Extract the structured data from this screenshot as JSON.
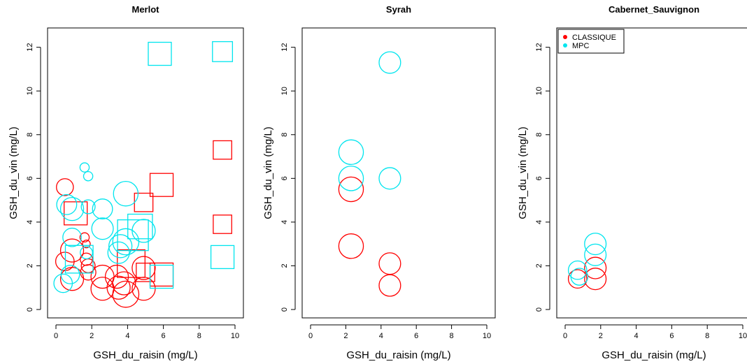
{
  "colors": {
    "CLASSIQUE": "#ff0000",
    "MPC": "#00e5ee",
    "axis": "#000000"
  },
  "legend": {
    "placement": "top-left",
    "panel": 2,
    "entries": [
      "CLASSIQUE",
      "MPC"
    ]
  },
  "chart_data": [
    {
      "type": "scatter",
      "title": "Merlot",
      "xlabel": "GSH_du_raisin (mg/L)",
      "ylabel": "GSH_du_vin (mg/L)",
      "xlim": [
        0,
        10
      ],
      "ylim": [
        0,
        12.5
      ],
      "xticks": [
        0,
        2,
        4,
        6,
        8,
        10
      ],
      "yticks": [
        0,
        2,
        4,
        6,
        8,
        10,
        12
      ],
      "series": [
        {
          "name": "CLASSIQUE",
          "color": "#ff0000",
          "points": [
            {
              "x": 0.5,
              "y": 5.6,
              "shape": "circle",
              "size": 0.55
            },
            {
              "x": 0.5,
              "y": 2.2,
              "shape": "circle",
              "size": 0.6
            },
            {
              "x": 0.9,
              "y": 2.7,
              "shape": "circle",
              "size": 0.75
            },
            {
              "x": 0.9,
              "y": 1.4,
              "shape": "circle",
              "size": 0.75
            },
            {
              "x": 1.1,
              "y": 4.4,
              "shape": "square",
              "size": 0.75
            },
            {
              "x": 1.6,
              "y": 3.3,
              "shape": "circle",
              "size": 0.3
            },
            {
              "x": 1.7,
              "y": 3.0,
              "shape": "circle",
              "size": 0.25
            },
            {
              "x": 1.7,
              "y": 2.3,
              "shape": "circle",
              "size": 0.4
            },
            {
              "x": 1.8,
              "y": 2.0,
              "shape": "circle",
              "size": 0.45
            },
            {
              "x": 1.8,
              "y": 1.7,
              "shape": "circle",
              "size": 0.5
            },
            {
              "x": 2.6,
              "y": 1.5,
              "shape": "circle",
              "size": 0.75
            },
            {
              "x": 2.6,
              "y": 0.95,
              "shape": "circle",
              "size": 0.75
            },
            {
              "x": 3.4,
              "y": 1.5,
              "shape": "circle",
              "size": 0.75
            },
            {
              "x": 3.5,
              "y": 1.0,
              "shape": "circle",
              "size": 0.75
            },
            {
              "x": 3.8,
              "y": 1.2,
              "shape": "circle",
              "size": 0.75
            },
            {
              "x": 3.9,
              "y": 0.7,
              "shape": "circle",
              "size": 0.85
            },
            {
              "x": 4.2,
              "y": 2.1,
              "shape": "square",
              "size": 0.9
            },
            {
              "x": 4.9,
              "y": 4.9,
              "shape": "square",
              "size": 0.6
            },
            {
              "x": 4.9,
              "y": 1.9,
              "shape": "circle",
              "size": 0.75
            },
            {
              "x": 4.9,
              "y": 0.95,
              "shape": "circle",
              "size": 0.75
            },
            {
              "x": 5.0,
              "y": 1.7,
              "shape": "square",
              "size": 0.6
            },
            {
              "x": 5.9,
              "y": 5.7,
              "shape": "square",
              "size": 0.75
            },
            {
              "x": 5.9,
              "y": 1.6,
              "shape": "square",
              "size": 0.75
            },
            {
              "x": 9.3,
              "y": 7.3,
              "shape": "square",
              "size": 0.6
            },
            {
              "x": 9.3,
              "y": 3.9,
              "shape": "square",
              "size": 0.6
            }
          ]
        },
        {
          "name": "MPC",
          "color": "#00e5ee",
          "points": [
            {
              "x": 0.4,
              "y": 1.2,
              "shape": "circle",
              "size": 0.6
            },
            {
              "x": 0.6,
              "y": 4.8,
              "shape": "circle",
              "size": 0.65
            },
            {
              "x": 0.8,
              "y": 1.6,
              "shape": "circle",
              "size": 0.6
            },
            {
              "x": 0.9,
              "y": 4.6,
              "shape": "circle",
              "size": 0.75
            },
            {
              "x": 0.9,
              "y": 3.3,
              "shape": "circle",
              "size": 0.6
            },
            {
              "x": 1.3,
              "y": 2.3,
              "shape": "square",
              "size": 0.9
            },
            {
              "x": 1.6,
              "y": 6.5,
              "shape": "circle",
              "size": 0.3
            },
            {
              "x": 1.8,
              "y": 6.1,
              "shape": "circle",
              "size": 0.3
            },
            {
              "x": 1.8,
              "y": 4.7,
              "shape": "circle",
              "size": 0.45
            },
            {
              "x": 1.7,
              "y": 2.6,
              "shape": "circle",
              "size": 0.4
            },
            {
              "x": 2.6,
              "y": 4.6,
              "shape": "circle",
              "size": 0.65
            },
            {
              "x": 2.6,
              "y": 3.7,
              "shape": "circle",
              "size": 0.7
            },
            {
              "x": 3.5,
              "y": 2.6,
              "shape": "circle",
              "size": 0.7
            },
            {
              "x": 3.6,
              "y": 2.9,
              "shape": "circle",
              "size": 0.75
            },
            {
              "x": 3.9,
              "y": 5.3,
              "shape": "circle",
              "size": 0.8
            },
            {
              "x": 3.9,
              "y": 3.1,
              "shape": "circle",
              "size": 0.85
            },
            {
              "x": 4.3,
              "y": 3.4,
              "shape": "square",
              "size": 1.0
            },
            {
              "x": 4.7,
              "y": 3.8,
              "shape": "square",
              "size": 0.8
            },
            {
              "x": 4.9,
              "y": 3.6,
              "shape": "circle",
              "size": 0.75
            },
            {
              "x": 5.8,
              "y": 11.7,
              "shape": "square",
              "size": 0.75
            },
            {
              "x": 5.9,
              "y": 1.5,
              "shape": "square",
              "size": 0.75
            },
            {
              "x": 9.3,
              "y": 11.8,
              "shape": "square",
              "size": 0.65
            },
            {
              "x": 9.3,
              "y": 2.4,
              "shape": "square",
              "size": 0.75
            }
          ]
        }
      ]
    },
    {
      "type": "scatter",
      "title": "Syrah",
      "xlabel": "GSH_du_raisin (mg/L)",
      "ylabel": "GSH_du_vin (mg/L)",
      "xlim": [
        0,
        10
      ],
      "ylim": [
        0,
        12.5
      ],
      "xticks": [
        0,
        2,
        4,
        6,
        8,
        10
      ],
      "yticks": [
        0,
        2,
        4,
        6,
        8,
        10,
        12
      ],
      "series": [
        {
          "name": "CLASSIQUE",
          "color": "#ff0000",
          "points": [
            {
              "x": 2.3,
              "y": 5.5,
              "shape": "circle",
              "size": 0.8
            },
            {
              "x": 2.3,
              "y": 2.9,
              "shape": "circle",
              "size": 0.8
            },
            {
              "x": 4.5,
              "y": 2.1,
              "shape": "circle",
              "size": 0.7
            },
            {
              "x": 4.5,
              "y": 1.1,
              "shape": "circle",
              "size": 0.7
            }
          ]
        },
        {
          "name": "MPC",
          "color": "#00e5ee",
          "points": [
            {
              "x": 2.3,
              "y": 7.2,
              "shape": "circle",
              "size": 0.8
            },
            {
              "x": 2.3,
              "y": 6.0,
              "shape": "circle",
              "size": 0.8
            },
            {
              "x": 4.5,
              "y": 11.3,
              "shape": "circle",
              "size": 0.7
            },
            {
              "x": 4.5,
              "y": 6.0,
              "shape": "circle",
              "size": 0.7
            }
          ]
        }
      ]
    },
    {
      "type": "scatter",
      "title": "Cabernet_Sauvignon",
      "xlabel": "GSH_du_raisin (mg/L)",
      "ylabel": "GSH_du_vin (mg/L)",
      "xlim": [
        0,
        10
      ],
      "ylim": [
        0,
        12.5
      ],
      "xticks": [
        0,
        2,
        4,
        6,
        8,
        10
      ],
      "yticks": [
        0,
        2,
        4,
        6,
        8,
        10,
        12
      ],
      "series": [
        {
          "name": "CLASSIQUE",
          "color": "#ff0000",
          "points": [
            {
              "x": 0.7,
              "y": 1.4,
              "shape": "circle",
              "size": 0.6
            },
            {
              "x": 1.7,
              "y": 1.9,
              "shape": "circle",
              "size": 0.7
            },
            {
              "x": 1.7,
              "y": 1.4,
              "shape": "circle",
              "size": 0.7
            }
          ]
        },
        {
          "name": "MPC",
          "color": "#00e5ee",
          "points": [
            {
              "x": 0.7,
              "y": 1.8,
              "shape": "circle",
              "size": 0.6
            },
            {
              "x": 0.8,
              "y": 1.5,
              "shape": "circle",
              "size": 0.55
            },
            {
              "x": 1.7,
              "y": 3.0,
              "shape": "circle",
              "size": 0.7
            },
            {
              "x": 1.7,
              "y": 2.5,
              "shape": "circle",
              "size": 0.7
            }
          ]
        }
      ]
    }
  ]
}
